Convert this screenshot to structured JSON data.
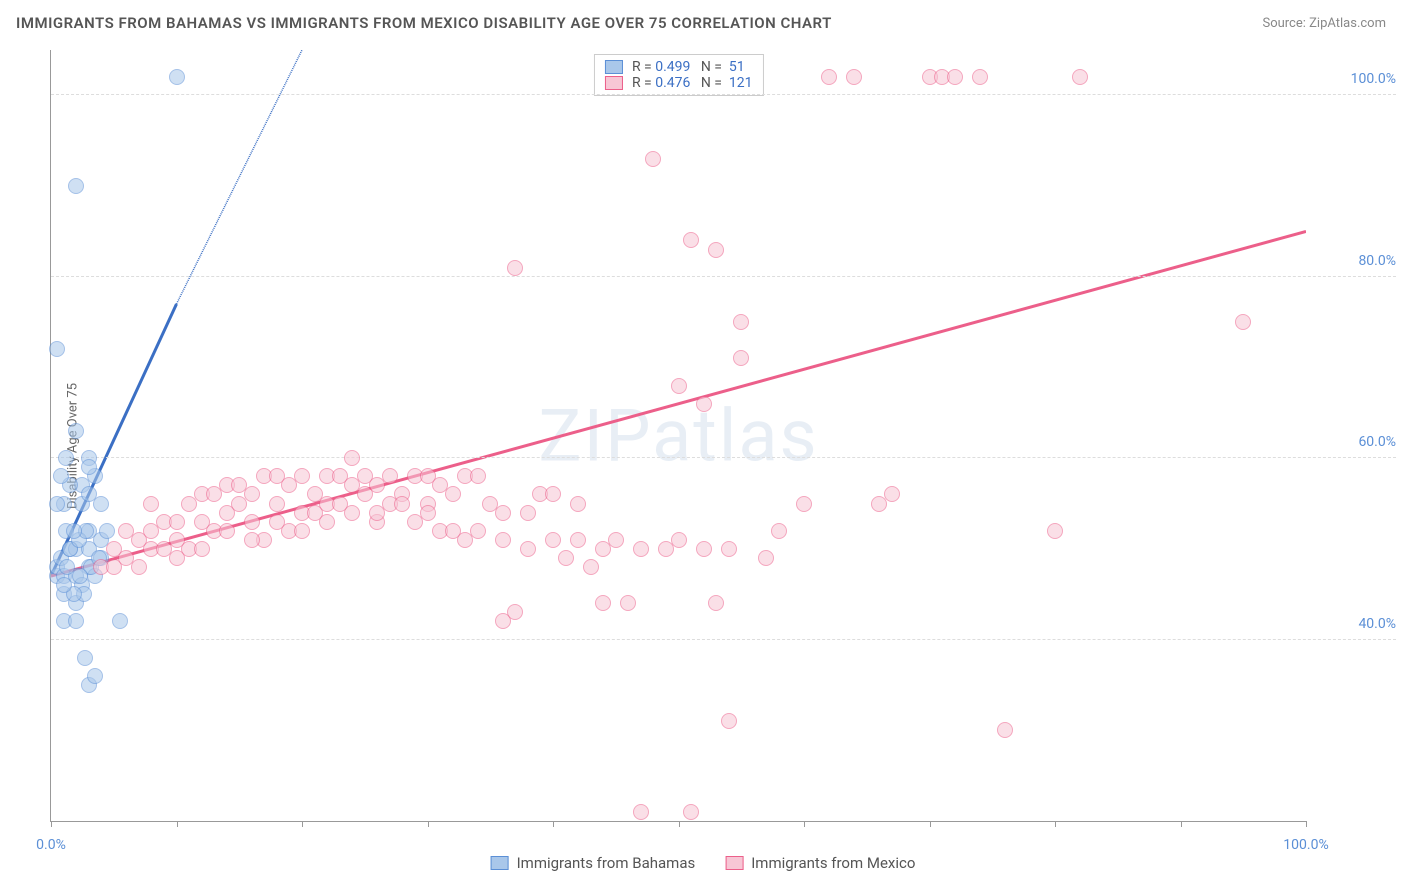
{
  "title": "IMMIGRANTS FROM BAHAMAS VS IMMIGRANTS FROM MEXICO DISABILITY AGE OVER 75 CORRELATION CHART",
  "source_label": "Source: ZipAtlas.com",
  "ylabel": "Disability Age Over 75",
  "watermark": "ZIPatlas",
  "chart": {
    "type": "scatter",
    "background_color": "#ffffff",
    "grid_color": "#dddddd",
    "axis_color": "#999999",
    "tick_label_color": "#5b8fd6",
    "xlim": [
      0,
      100
    ],
    "ylim": [
      20,
      105
    ],
    "xticks": [
      0,
      10,
      20,
      30,
      40,
      50,
      60,
      70,
      80,
      90,
      100
    ],
    "xtick_labels_shown": {
      "0": "0.0%",
      "100": "100.0%"
    },
    "yticks": [
      40,
      60,
      80,
      100
    ],
    "ytick_labels": [
      "40.0%",
      "60.0%",
      "80.0%",
      "100.0%"
    ],
    "marker_size": 16,
    "marker_opacity": 0.55
  },
  "series": [
    {
      "name": "Immigrants from Bahamas",
      "color_fill": "#a9c7ea",
      "color_stroke": "#5b8fd6",
      "R": "0.499",
      "N": "51",
      "trend_line": {
        "x1": 0,
        "y1": 47,
        "x2": 10,
        "y2": 77,
        "dash_to_x": 20,
        "dash_to_y": 105,
        "width": 3,
        "color": "#3b6fc4"
      },
      "points": [
        [
          0.5,
          47
        ],
        [
          0.5,
          48
        ],
        [
          0.8,
          49
        ],
        [
          1,
          47
        ],
        [
          1,
          42
        ],
        [
          1,
          45
        ],
        [
          1.5,
          50
        ],
        [
          1.2,
          52
        ],
        [
          2,
          47
        ],
        [
          2,
          50
        ],
        [
          2,
          44
        ],
        [
          2,
          42
        ],
        [
          2.5,
          46
        ],
        [
          2.5,
          55
        ],
        [
          2.5,
          57
        ],
        [
          3,
          48
        ],
        [
          3,
          50
        ],
        [
          3,
          52
        ],
        [
          3,
          60
        ],
        [
          3.5,
          47
        ],
        [
          3.5,
          58
        ],
        [
          4,
          51
        ],
        [
          4,
          55
        ],
        [
          4,
          49
        ],
        [
          4.5,
          52
        ],
        [
          0.5,
          72
        ],
        [
          2,
          90
        ],
        [
          10,
          102
        ],
        [
          5.5,
          42
        ],
        [
          3,
          35
        ],
        [
          3.5,
          36
        ],
        [
          2.7,
          38
        ],
        [
          1,
          55
        ],
        [
          1.5,
          57
        ],
        [
          1.2,
          60
        ],
        [
          0.8,
          58
        ],
        [
          0.5,
          55
        ],
        [
          2,
          63
        ],
        [
          3,
          56
        ],
        [
          3,
          59
        ],
        [
          1.5,
          50
        ],
        [
          2.2,
          51
        ],
        [
          2.8,
          52
        ],
        [
          1.8,
          52
        ],
        [
          1.3,
          48
        ],
        [
          3.2,
          48
        ],
        [
          2.6,
          45
        ],
        [
          3.8,
          49
        ],
        [
          1.8,
          45
        ],
        [
          1,
          46
        ],
        [
          2.3,
          47
        ]
      ]
    },
    {
      "name": "Immigrants from Mexico",
      "color_fill": "#f7c6d5",
      "color_stroke": "#ec5f8a",
      "R": "0.476",
      "N": "121",
      "trend_line": {
        "x1": 0,
        "y1": 47,
        "x2": 100,
        "y2": 85,
        "width": 3,
        "color": "#ec5f8a"
      },
      "points": [
        [
          4,
          48
        ],
        [
          5,
          50
        ],
        [
          6,
          49
        ],
        [
          7,
          51
        ],
        [
          8,
          52
        ],
        [
          8,
          50
        ],
        [
          9,
          53
        ],
        [
          10,
          53
        ],
        [
          10,
          51
        ],
        [
          11,
          55
        ],
        [
          12,
          53
        ],
        [
          12,
          56
        ],
        [
          13,
          56
        ],
        [
          14,
          54
        ],
        [
          14,
          57
        ],
        [
          15,
          57
        ],
        [
          16,
          56
        ],
        [
          16,
          53
        ],
        [
          17,
          58
        ],
        [
          18,
          55
        ],
        [
          18,
          58
        ],
        [
          19,
          57
        ],
        [
          20,
          54
        ],
        [
          20,
          58
        ],
        [
          21,
          56
        ],
        [
          22,
          58
        ],
        [
          22,
          55
        ],
        [
          23,
          58
        ],
        [
          24,
          57
        ],
        [
          24,
          60
        ],
        [
          25,
          58
        ],
        [
          26,
          57
        ],
        [
          26,
          53
        ],
        [
          27,
          58
        ],
        [
          28,
          56
        ],
        [
          29,
          58
        ],
        [
          30,
          55
        ],
        [
          30,
          58
        ],
        [
          31,
          57
        ],
        [
          32,
          56
        ],
        [
          33,
          58
        ],
        [
          34,
          58
        ],
        [
          35,
          55
        ],
        [
          36,
          51
        ],
        [
          36,
          42
        ],
        [
          37,
          43
        ],
        [
          37,
          81
        ],
        [
          38,
          50
        ],
        [
          39,
          56
        ],
        [
          40,
          51
        ],
        [
          41,
          49
        ],
        [
          42,
          51
        ],
        [
          43,
          48
        ],
        [
          44,
          50
        ],
        [
          45,
          51
        ],
        [
          46,
          44
        ],
        [
          47,
          21
        ],
        [
          47,
          50
        ],
        [
          48,
          93
        ],
        [
          49,
          50
        ],
        [
          50,
          51
        ],
        [
          50,
          68
        ],
        [
          51,
          21
        ],
        [
          51,
          84
        ],
        [
          52,
          50
        ],
        [
          52,
          66
        ],
        [
          53,
          44
        ],
        [
          53,
          83
        ],
        [
          54,
          50
        ],
        [
          54,
          31
        ],
        [
          55,
          75
        ],
        [
          55,
          71
        ],
        [
          57,
          49
        ],
        [
          58,
          52
        ],
        [
          60,
          55
        ],
        [
          62,
          102
        ],
        [
          64,
          102
        ],
        [
          66,
          55
        ],
        [
          67,
          56
        ],
        [
          70,
          102
        ],
        [
          71,
          102
        ],
        [
          72,
          102
        ],
        [
          74,
          102
        ],
        [
          76,
          30
        ],
        [
          80,
          52
        ],
        [
          82,
          102
        ],
        [
          95,
          75
        ],
        [
          8,
          55
        ],
        [
          11,
          50
        ],
        [
          13,
          52
        ],
        [
          15,
          55
        ],
        [
          17,
          51
        ],
        [
          19,
          52
        ],
        [
          21,
          54
        ],
        [
          23,
          55
        ],
        [
          25,
          56
        ],
        [
          27,
          55
        ],
        [
          29,
          53
        ],
        [
          31,
          52
        ],
        [
          5,
          48
        ],
        [
          6,
          52
        ],
        [
          7,
          48
        ],
        [
          9,
          50
        ],
        [
          10,
          49
        ],
        [
          12,
          50
        ],
        [
          14,
          52
        ],
        [
          16,
          51
        ],
        [
          18,
          53
        ],
        [
          20,
          52
        ],
        [
          22,
          53
        ],
        [
          24,
          54
        ],
        [
          26,
          54
        ],
        [
          28,
          55
        ],
        [
          30,
          54
        ],
        [
          32,
          52
        ],
        [
          34,
          52
        ],
        [
          36,
          54
        ],
        [
          38,
          54
        ],
        [
          40,
          56
        ],
        [
          42,
          55
        ],
        [
          44,
          44
        ],
        [
          33,
          51
        ]
      ]
    }
  ],
  "legend": {
    "R_label": "R =",
    "N_label": "N =",
    "value_color": "#3b6fc4"
  },
  "bottom_legend": [
    {
      "label": "Immigrants from Bahamas",
      "fill": "#a9c7ea",
      "stroke": "#5b8fd6"
    },
    {
      "label": "Immigrants from Mexico",
      "fill": "#f7c6d5",
      "stroke": "#ec5f8a"
    }
  ]
}
